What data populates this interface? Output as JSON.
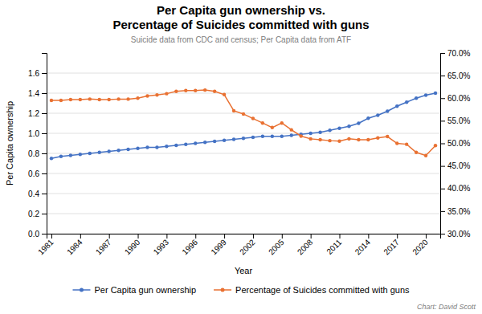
{
  "chart_data": {
    "type": "line",
    "title": "Per Capita gun ownership vs.\nPercentage of Suicides committed with guns",
    "subtitle": "Suicide data from CDC and census; Per Capita data from ATF",
    "x_label": "Year",
    "y_label": "Per Capita ownership",
    "annotations": [
      "Chart: David Scott"
    ],
    "x": [
      1981,
      1982,
      1983,
      1984,
      1985,
      1986,
      1987,
      1988,
      1989,
      1990,
      1991,
      1992,
      1993,
      1994,
      1995,
      1996,
      1997,
      1998,
      1999,
      2000,
      2001,
      2002,
      2003,
      2004,
      2005,
      2006,
      2007,
      2008,
      2009,
      2010,
      2011,
      2012,
      2013,
      2014,
      2015,
      2016,
      2017,
      2018,
      2019,
      2020,
      2021
    ],
    "series": [
      {
        "name": "Per Capita gun ownership",
        "color": "#4472C4",
        "marker": "circle",
        "axis": "y",
        "values": [
          0.75,
          0.77,
          0.78,
          0.79,
          0.8,
          0.81,
          0.82,
          0.83,
          0.84,
          0.85,
          0.86,
          0.86,
          0.87,
          0.88,
          0.89,
          0.9,
          0.91,
          0.92,
          0.93,
          0.94,
          0.95,
          0.96,
          0.97,
          0.97,
          0.97,
          0.98,
          0.99,
          1.0,
          1.01,
          1.03,
          1.05,
          1.07,
          1.1,
          1.15,
          1.18,
          1.22,
          1.27,
          1.31,
          1.35,
          1.38,
          1.4
        ]
      },
      {
        "name": "Percentage of Suicides committed with guns",
        "color": "#E97132",
        "marker": "circle",
        "axis": "y2",
        "values": [
          0.595,
          0.595,
          0.597,
          0.597,
          0.598,
          0.597,
          0.597,
          0.598,
          0.598,
          0.6,
          0.605,
          0.607,
          0.61,
          0.615,
          0.617,
          0.617,
          0.618,
          0.615,
          0.608,
          0.572,
          0.565,
          0.555,
          0.545,
          0.535,
          0.545,
          0.53,
          0.516,
          0.51,
          0.508,
          0.506,
          0.505,
          0.51,
          0.508,
          0.508,
          0.512,
          0.515,
          0.5,
          0.498,
          0.48,
          0.473,
          0.495
        ]
      }
    ],
    "xlim": [
      1980.5,
      2021.5
    ],
    "xticks": [
      1981,
      1984,
      1987,
      1990,
      1993,
      1996,
      1999,
      2002,
      2005,
      2008,
      2011,
      2014,
      2017,
      2020
    ],
    "ylim": [
      0,
      1.8
    ],
    "yticks": [
      {
        "value": 0,
        "label": "0.0"
      },
      0.2,
      0.4,
      0.6,
      0.8,
      {
        "value": 1.0,
        "label": "1.0"
      },
      1.2,
      1.4,
      1.6
    ],
    "y2lim": [
      0.3,
      0.7
    ],
    "y2ticks": [
      {
        "value": 0.3,
        "label": "30.0%"
      },
      {
        "value": 0.35,
        "label": "35.0%"
      },
      {
        "value": 0.4,
        "label": "40.0%"
      },
      {
        "value": 0.45,
        "label": "45.0%"
      },
      {
        "value": 0.5,
        "label": "50.0%"
      },
      {
        "value": 0.55,
        "label": "55.0%"
      },
      {
        "value": 0.6,
        "label": "60.0%"
      },
      {
        "value": 0.65,
        "label": "65.0%"
      },
      {
        "value": 0.7,
        "label": "70.0%"
      }
    ],
    "grid": true,
    "legend": "bottom"
  }
}
